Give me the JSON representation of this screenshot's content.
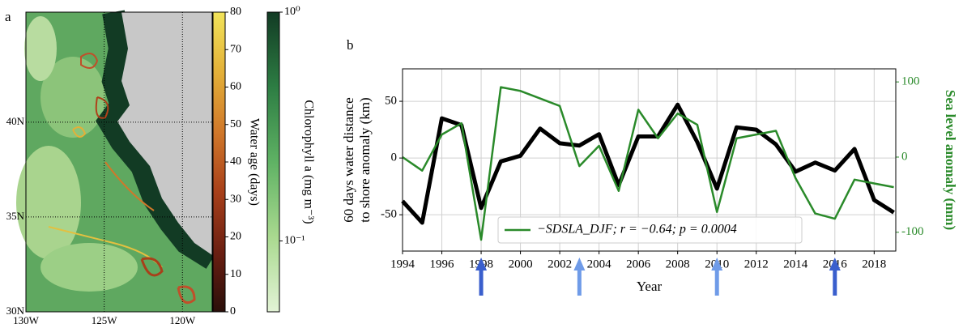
{
  "chart_data": [
    {
      "type": "map",
      "label": "a",
      "xlim": [
        -130,
        -118.1
      ],
      "ylim": [
        30,
        45.8
      ],
      "xticks": [
        {
          "value": -130,
          "label": "130W"
        },
        {
          "value": -125,
          "label": "125W"
        },
        {
          "value": -120,
          "label": "120W"
        }
      ],
      "yticks": [
        {
          "value": 30,
          "label": "30N"
        },
        {
          "value": 35,
          "label": "35N"
        },
        {
          "value": 40,
          "label": "40N"
        }
      ],
      "grid": true,
      "colorbars": [
        {
          "label": "Water age (days)",
          "ylim": [
            0,
            80
          ],
          "yticks": [
            0,
            10,
            20,
            30,
            40,
            50,
            60,
            70,
            80
          ],
          "colors": [
            "#2a0f0a",
            "#6b1f12",
            "#a8401a",
            "#d0782a",
            "#e3b038",
            "#f2e45a"
          ]
        },
        {
          "label": "Chlorophyll a (mg m⁻³)",
          "log": true,
          "ylim": [
            0.049,
            1
          ],
          "yticks": [
            {
              "value": 0.1,
              "label": "10⁻¹"
            },
            {
              "value": 1,
              "label": "10⁰"
            }
          ],
          "colors": [
            "#e3f3d6",
            "#a9d98f",
            "#5fb264",
            "#2d7d43",
            "#123b24"
          ]
        }
      ]
    },
    {
      "type": "line",
      "label": "b",
      "xlabel": "Year",
      "ylabel": [
        "60 days water distance",
        "to shore anomaly (km)"
      ],
      "y2label": "Sea level anomaly (mm)",
      "x": [
        1994,
        1995,
        1996,
        1997,
        1998,
        1999,
        2000,
        2001,
        2002,
        2003,
        2004,
        2005,
        2006,
        2007,
        2008,
        2009,
        2010,
        2011,
        2012,
        2013,
        2014,
        2015,
        2016,
        2017,
        2018,
        2019
      ],
      "xlim": [
        1994,
        2019.1
      ],
      "ylim": [
        -82,
        78.6
      ],
      "y2lim": [
        -125,
        117.4
      ],
      "xticks": [
        1994,
        1996,
        1998,
        2000,
        2002,
        2004,
        2006,
        2008,
        2010,
        2012,
        2014,
        2016,
        2018
      ],
      "yticks": [
        -50,
        0,
        50
      ],
      "y2ticks": [
        -100,
        0,
        100
      ],
      "grid": true,
      "legend": "lower center",
      "series": [
        {
          "color": "#000000",
          "values": [
            -38,
            -57,
            35,
            29,
            -44,
            -3,
            2,
            26,
            13,
            11,
            21,
            -24,
            19,
            19,
            47,
            14,
            -27,
            27,
            25,
            12,
            -12,
            -4,
            -11,
            8,
            -37,
            -48
          ]
        },
        {
          "name": "−SDSLA_DJF; r = −0.64; p = 0.0004",
          "color": "#2a8a2a",
          "axis": "y2",
          "values": [
            0,
            -18,
            30,
            45,
            -110,
            93,
            88,
            78,
            68,
            -12,
            15,
            -45,
            63,
            25,
            58,
            43,
            -73,
            25,
            30,
            35,
            -28,
            -75,
            -82,
            -30,
            -35,
            -40
          ]
        }
      ],
      "arrows": [
        {
          "x": 1998,
          "color": "#3a5fcd"
        },
        {
          "x": 2003,
          "color": "#6f9be8"
        },
        {
          "x": 2010,
          "color": "#6f9be8"
        },
        {
          "x": 2016,
          "color": "#3a5fcd"
        }
      ]
    }
  ]
}
